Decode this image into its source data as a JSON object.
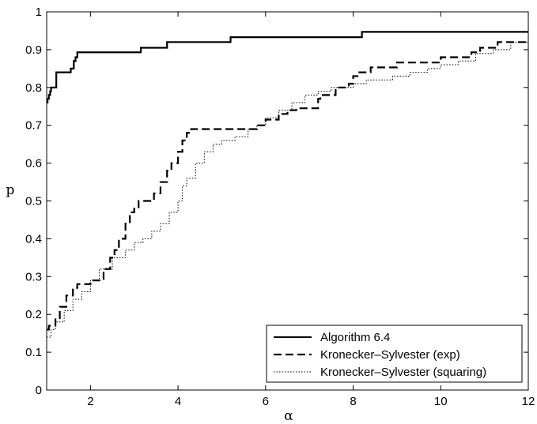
{
  "chart_data": {
    "type": "line",
    "title": "",
    "xlabel": "α",
    "ylabel": "p",
    "xlim": [
      1,
      12
    ],
    "ylim": [
      0,
      1
    ],
    "xticks": [
      2,
      4,
      6,
      8,
      10,
      12
    ],
    "yticks": [
      0,
      0.1,
      0.2,
      0.3,
      0.4,
      0.5,
      0.6,
      0.7,
      0.8,
      0.9,
      1
    ],
    "grid": false,
    "legend_position": "bottom-right",
    "series": [
      {
        "name": "Algorithm 6.4",
        "style": "solid",
        "color": "#000000",
        "x": [
          1.0,
          1.02,
          1.05,
          1.08,
          1.1,
          1.15,
          1.22,
          1.35,
          1.55,
          1.62,
          1.66,
          1.7,
          3.15,
          3.75,
          5.2,
          8.2,
          12.0
        ],
        "y": [
          0.76,
          0.77,
          0.78,
          0.79,
          0.8,
          0.8,
          0.84,
          0.84,
          0.85,
          0.87,
          0.88,
          0.893,
          0.905,
          0.92,
          0.933,
          0.947,
          0.947
        ]
      },
      {
        "name": "Kronecker–Sylvester (exp)",
        "style": "dashed",
        "color": "#000000",
        "x": [
          1.0,
          1.05,
          1.2,
          1.3,
          1.45,
          1.6,
          1.7,
          2.0,
          2.3,
          2.45,
          2.55,
          2.65,
          2.8,
          2.9,
          3.0,
          3.1,
          3.25,
          3.45,
          3.6,
          3.75,
          3.85,
          4.0,
          4.1,
          4.2,
          4.3,
          4.4,
          4.5,
          5.6,
          5.8,
          6.0,
          6.3,
          6.5,
          6.7,
          7.2,
          7.25,
          7.6,
          7.9,
          8.0,
          8.1,
          8.4,
          8.7,
          9.0,
          9.6,
          10.0,
          10.5,
          10.7,
          10.9,
          11.3,
          12.0
        ],
        "y": [
          0.16,
          0.17,
          0.19,
          0.22,
          0.25,
          0.27,
          0.28,
          0.29,
          0.32,
          0.35,
          0.37,
          0.4,
          0.44,
          0.47,
          0.48,
          0.5,
          0.5,
          0.52,
          0.55,
          0.58,
          0.6,
          0.63,
          0.66,
          0.68,
          0.69,
          0.69,
          0.69,
          0.69,
          0.7,
          0.715,
          0.73,
          0.74,
          0.745,
          0.77,
          0.78,
          0.8,
          0.81,
          0.83,
          0.84,
          0.853,
          0.853,
          0.866,
          0.866,
          0.88,
          0.88,
          0.893,
          0.905,
          0.92,
          0.92
        ]
      },
      {
        "name": "Kronecker–Sylvester (squaring)",
        "style": "dotted",
        "color": "#000000",
        "x": [
          1.0,
          1.1,
          1.2,
          1.4,
          1.6,
          1.8,
          2.0,
          2.2,
          2.5,
          2.8,
          3.0,
          3.2,
          3.4,
          3.6,
          3.8,
          4.0,
          4.1,
          4.2,
          4.4,
          4.6,
          4.8,
          5.0,
          5.3,
          5.6,
          5.8,
          6.0,
          6.3,
          6.6,
          6.9,
          7.2,
          7.5,
          7.8,
          8.0,
          8.3,
          8.6,
          8.9,
          9.3,
          9.7,
          10.0,
          10.4,
          10.8,
          11.2,
          11.6,
          12.0
        ],
        "y": [
          0.14,
          0.16,
          0.18,
          0.21,
          0.24,
          0.26,
          0.29,
          0.32,
          0.35,
          0.37,
          0.39,
          0.4,
          0.42,
          0.44,
          0.47,
          0.5,
          0.54,
          0.56,
          0.6,
          0.63,
          0.65,
          0.66,
          0.67,
          0.69,
          0.7,
          0.72,
          0.74,
          0.76,
          0.78,
          0.79,
          0.8,
          0.8,
          0.81,
          0.82,
          0.82,
          0.83,
          0.84,
          0.85,
          0.86,
          0.87,
          0.89,
          0.9,
          0.92,
          0.94
        ]
      }
    ]
  }
}
